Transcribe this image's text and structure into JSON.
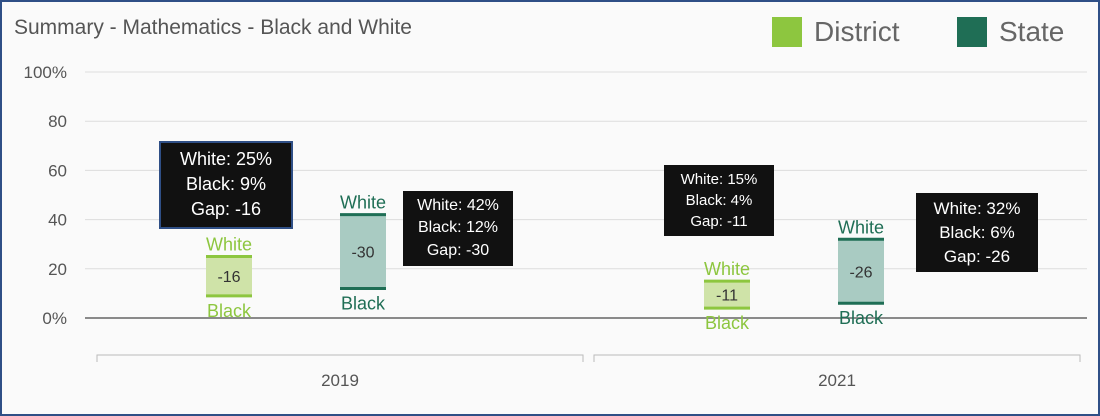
{
  "chart_data": {
    "type": "bar",
    "title": "Summary - Mathematics - Black and White",
    "categories": [
      "2019",
      "2021"
    ],
    "ylim": [
      0,
      100
    ],
    "yticks": [
      "100%",
      "80",
      "60",
      "40",
      "20",
      "0%"
    ],
    "ytick_values": [
      100,
      80,
      60,
      40,
      20,
      0
    ],
    "grid": true,
    "legend_position": "top-right",
    "series": [
      {
        "name": "District",
        "color": "#8dc63f",
        "fill": "#cfe3a8",
        "white": [
          25,
          15
        ],
        "black": [
          9,
          4
        ],
        "gap": [
          -16,
          -11
        ]
      },
      {
        "name": "State",
        "color": "#1f6e55",
        "fill": "#a9cbc2",
        "white": [
          42,
          32
        ],
        "black": [
          12,
          6
        ],
        "gap": [
          -30,
          -26
        ]
      }
    ],
    "labels": {
      "white": "White",
      "black": "Black"
    },
    "tooltips": [
      {
        "white": "White: 25%",
        "black": "Black: 9%",
        "gap": "Gap: -16"
      },
      {
        "white": "White: 42%",
        "black": "Black: 12%",
        "gap": "Gap: -30"
      },
      {
        "white": "White: 15%",
        "black": "Black: 4%",
        "gap": "Gap: -11"
      },
      {
        "white": "White: 32%",
        "black": "Black: 6%",
        "gap": "Gap: -26"
      }
    ]
  }
}
